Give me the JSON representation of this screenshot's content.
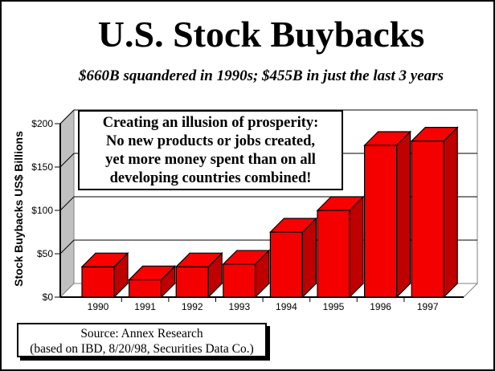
{
  "window": {
    "background": "#FFFFFF",
    "border_color": "#000000"
  },
  "header": {
    "title": "U.S. Stock Buybacks",
    "subtitle": "$660B squandered in 1990s; $455B in just the last 3 years"
  },
  "annotation_box": {
    "lines": [
      "Creating an illusion of prosperity:",
      "No new products or jobs created,",
      "yet more money spent than on all",
      "developing countries combined!"
    ]
  },
  "source_box": {
    "line1": "Source: Annex Research",
    "line2": "(based on IBD, 8/20/98, Securities Data Co.)"
  },
  "chart_data": {
    "type": "bar",
    "style": "3d-column",
    "title": "U.S. Stock Buybacks",
    "categories": [
      "1990",
      "1991",
      "1992",
      "1993",
      "1994",
      "1995",
      "1996",
      "1997"
    ],
    "values": [
      35,
      20,
      35,
      38,
      75,
      100,
      175,
      180
    ],
    "series_name": "Stock Buybacks",
    "xlabel": "",
    "ylabel": "Stock Buybacks US$ Billions",
    "ylim": [
      0,
      200
    ],
    "ytick_values": [
      0,
      50,
      100,
      150,
      200
    ],
    "ytick_labels": [
      "$0",
      "$50",
      "$100",
      "$150",
      "$200"
    ],
    "grid": true,
    "legend": false,
    "colors": {
      "bar_front": "#F40000",
      "bar_top": "#FB0000",
      "bar_side": "#BE0000",
      "bar_outline": "#000000",
      "wall_side": "#C0C0C0",
      "wall_back": "#FFFFFF",
      "floor": "#FFFFFF",
      "gridline": "#000000",
      "frame": "#808080",
      "text": "#000000"
    }
  }
}
